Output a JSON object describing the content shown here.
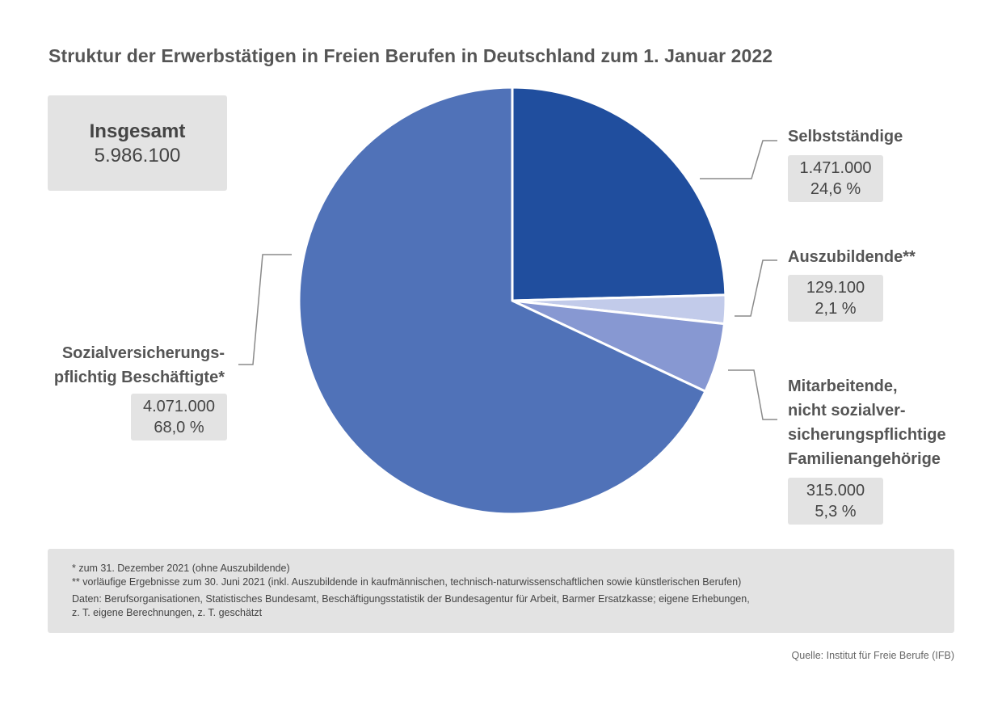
{
  "title": "Struktur der Erwerbstätigen in Freien Berufen in Deutschland zum 1. Januar 2022",
  "total": {
    "label": "Insgesamt",
    "value": "5.986.100"
  },
  "chart_data": {
    "type": "pie",
    "title": "Struktur der Erwerbstätigen in Freien Berufen in Deutschland zum 1. Januar 2022",
    "total": 5986100,
    "slices": [
      {
        "label_lines": [
          "Selbstständige"
        ],
        "value": 1471000,
        "value_text": "1.471.000",
        "percent": 24.6,
        "percent_text": "24,6 %",
        "color": "#204e9e"
      },
      {
        "label_lines": [
          "Auszubildende**"
        ],
        "value": 129100,
        "value_text": "129.100",
        "percent": 2.1,
        "percent_text": "2,1 %",
        "color": "#c2cbea"
      },
      {
        "label_lines": [
          "Mitarbeitende,",
          "nicht sozialver-",
          "sicherungspflichtige",
          "Familienangehörige"
        ],
        "value": 315000,
        "value_text": "315.000",
        "percent": 5.3,
        "percent_text": "5,3 %",
        "color": "#8798d2"
      },
      {
        "label_lines": [
          "Sozialversicherungs-",
          "pflichtig Beschäftigte*"
        ],
        "value": 4071000,
        "value_text": "4.071.000",
        "percent": 68.0,
        "percent_text": "68,0 %",
        "color": "#5072b8"
      }
    ]
  },
  "notes": {
    "line1": "*   zum 31. Dezember 2021 (ohne Auszubildende)",
    "line2": "** vorläufige Ergebnisse zum 30. Juni 2021 (inkl. Auszubildende in kaufmännischen, technisch-naturwissenschaftlichen sowie künstlerischen Berufen)",
    "line3": "Daten: Berufsorganisationen, Statistisches Bundesamt, Beschäftigungsstatistik der Bundesagentur für Arbeit, Barmer Ersatzkasse; eigene Erhebungen,",
    "line4": "z. T. eigene Berechnungen, z. T. geschätzt"
  },
  "source": "Quelle: Institut für Freie Berufe (IFB)"
}
